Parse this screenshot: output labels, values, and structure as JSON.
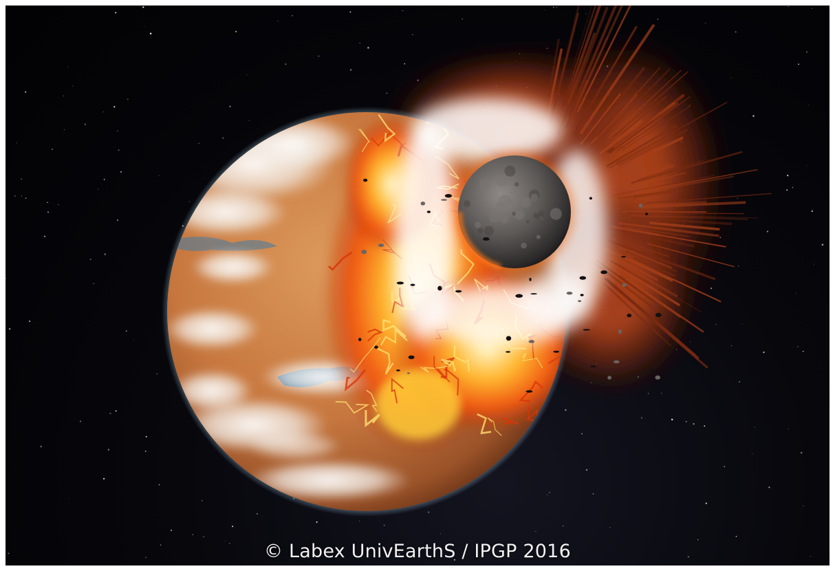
{
  "image": {
    "credit": "© Labex UnivEarthS / IPGP 2016",
    "colors": {
      "space": "#050508",
      "planet_surface": "#c7773e",
      "planet_dark": "#8a4520",
      "ocean": "#2f6a9b",
      "clouds": "#f4f1ec",
      "fire": "#f06a14",
      "fire_hot": "#ffd23a",
      "impactor": "#5e5a58",
      "ejecta": "#7a2a10"
    }
  }
}
